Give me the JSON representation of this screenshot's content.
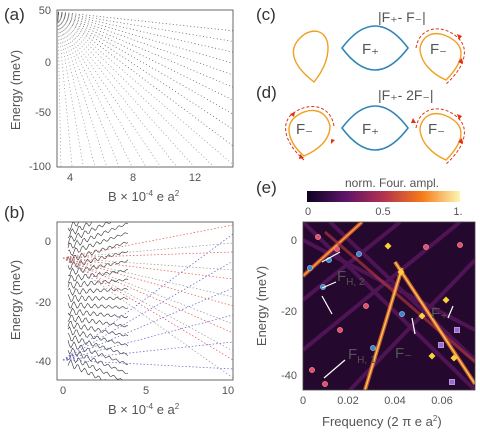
{
  "panels": {
    "a": {
      "label": "(a)",
      "ylabel": "Energy (meV)",
      "xlabel_prefix": "B × 10",
      "xlabel_exp": "-4",
      "xlabel_suffix": " e a",
      "xlabel_sup2": "2",
      "yticks": [
        "50",
        "0",
        "-50",
        "-100"
      ],
      "xticks": [
        "4",
        "8",
        "12"
      ]
    },
    "b": {
      "label": "(b)",
      "ylabel": "Energy (meV)",
      "xlabel_prefix": "B × 10",
      "xlabel_exp": "-4",
      "xlabel_suffix": " e a",
      "xlabel_sup2": "2",
      "yticks": [
        "0",
        "-20",
        "-40"
      ],
      "xticks": [
        "0",
        "5",
        "10"
      ]
    },
    "c": {
      "label": "(c)",
      "title": "|F₊- F₋|",
      "orbit_labels": [
        "F₊",
        "F₋"
      ]
    },
    "d": {
      "label": "(d)",
      "title": "|F₊- 2F₋|",
      "orbit_labels": [
        "F₋",
        "F₊",
        "F₋"
      ]
    },
    "e": {
      "label": "(e)",
      "colorbar_title": "norm. Four. ampl.",
      "colorbar_ticks": [
        "0",
        "0.5",
        "1."
      ],
      "ylabel": "Energy (meV)",
      "xlabel": "Frequency (2 π e a",
      "xlabel_sup2": "2",
      "xlabel_close": ")",
      "yticks": [
        "0",
        "-20",
        "-40"
      ],
      "xticks": [
        "0",
        "0.02",
        "0.04",
        "0.06"
      ],
      "annotations": {
        "fh2_main": "F",
        "fh2_sub": "H, 2",
        "fh1_main": "F",
        "fh1_sub": "H, 1",
        "fplus": "F₊",
        "fminus": "F₋"
      }
    }
  },
  "colors": {
    "orange": "#f0a020",
    "blue": "#2f86b8",
    "arrow_red": "#e03018",
    "heatmap_bg": "#25082e"
  }
}
